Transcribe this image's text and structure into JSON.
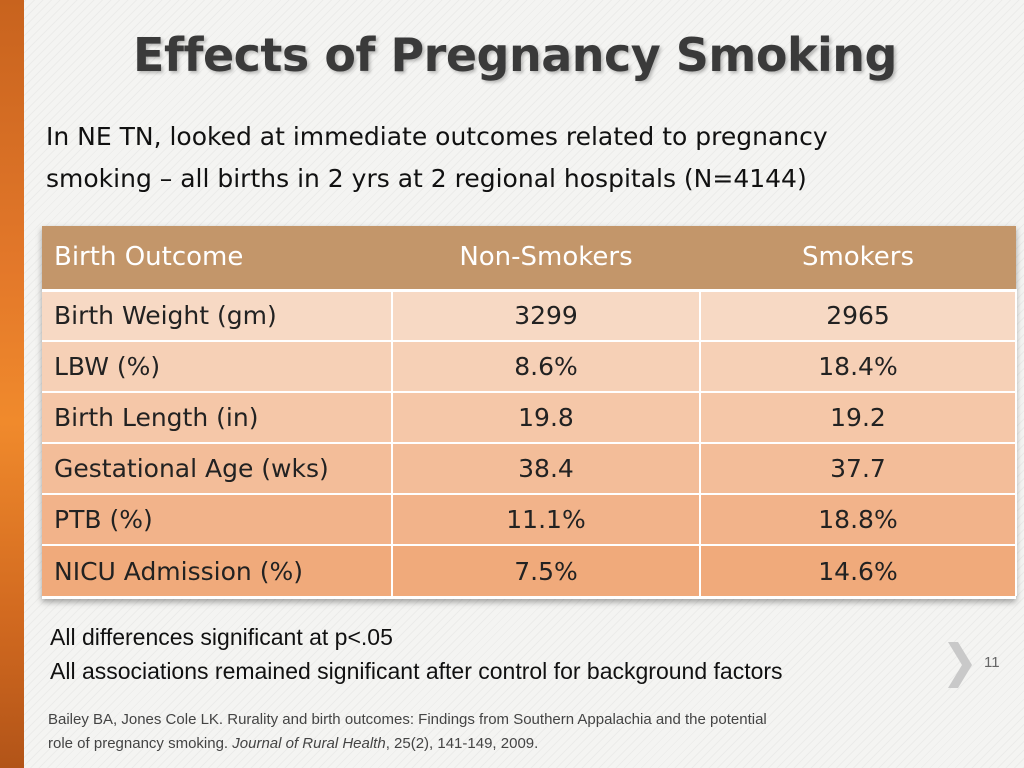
{
  "slide": {
    "title": "Effects of Pregnancy Smoking",
    "intro_line1": "In NE TN, looked at immediate outcomes related to pregnancy",
    "intro_line2": "smoking – all births in 2 yrs at 2 regional hospitals (N=4144)",
    "slide_number": "11",
    "accent_color": "#e3782a"
  },
  "table": {
    "headers": [
      "Birth Outcome",
      "Non-Smokers",
      "Smokers"
    ],
    "rows": [
      [
        "Birth Weight (gm)",
        "3299",
        "2965"
      ],
      [
        "LBW (%)",
        "8.6%",
        "18.4%"
      ],
      [
        "Birth Length (in)",
        "19.8",
        "19.2"
      ],
      [
        "Gestational Age (wks)",
        "38.4",
        "37.7"
      ],
      [
        "PTB (%)",
        "11.1%",
        "18.8%"
      ],
      [
        "NICU Admission (%)",
        "7.5%",
        "14.6%"
      ]
    ],
    "header_color": "#c3966a"
  },
  "notes": {
    "line1": "All differences significant at p<.05",
    "line2": "All associations remained significant after control for background factors"
  },
  "citation": {
    "line1": "Bailey BA, Jones Cole LK. Rurality and birth outcomes: Findings from Southern Appalachia and the potential",
    "line2_prefix": "role of pregnancy smoking. ",
    "journal": "Journal of Rural Health",
    "line2_suffix": ", 25(2), 141-149, 2009."
  },
  "icons": {
    "next_slide": "chevron-right-icon"
  }
}
